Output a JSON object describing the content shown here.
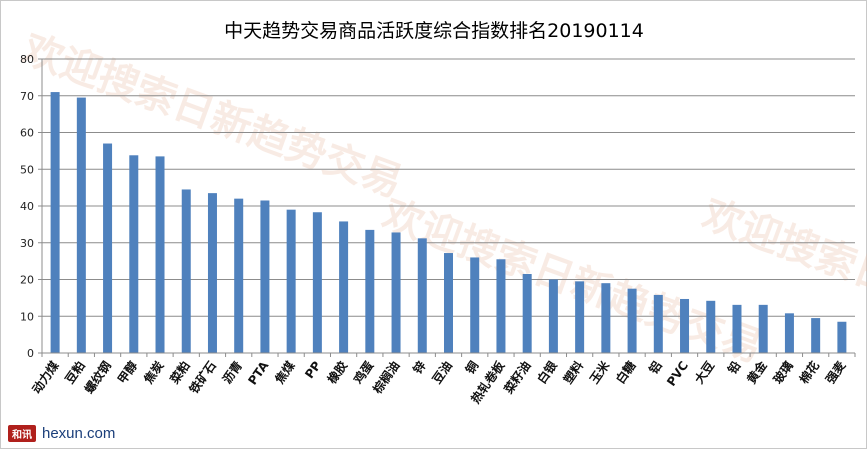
{
  "watermark": "欢迎搜索日新趋势交易",
  "brand": {
    "mark": "和讯",
    "site": "hexun.com"
  },
  "chart_data": {
    "type": "bar",
    "title": "中天趋势交易商品活跃度综合指数排名20190114",
    "categories": [
      "动力煤",
      "豆粕",
      "螺纹钢",
      "甲醇",
      "焦炭",
      "菜粕",
      "铁矿石",
      "沥青",
      "PTA",
      "焦煤",
      "PP",
      "橡胶",
      "鸡蛋",
      "棕榈油",
      "锌",
      "豆油",
      "铜",
      "热轧卷板",
      "菜籽油",
      "白银",
      "塑料",
      "玉米",
      "白糖",
      "铝",
      "PVC",
      "大豆",
      "铅",
      "黄金",
      "玻璃",
      "棉花",
      "强麦"
    ],
    "values": [
      71,
      69.5,
      57,
      53.8,
      53.5,
      44.5,
      43.5,
      42,
      41.5,
      39,
      38.3,
      35.8,
      33.5,
      32.8,
      31.2,
      27.2,
      26,
      25.5,
      21.5,
      20,
      19.5,
      19,
      17.5,
      15.8,
      14.7,
      14.2,
      13.1,
      13.1,
      10.8,
      9.5,
      8.5
    ],
    "ylim": [
      0,
      80
    ],
    "yticks": [
      0,
      10,
      20,
      30,
      40,
      50,
      60,
      70,
      80
    ],
    "grid": true,
    "legend": "none",
    "bar_color": "#4f81bd"
  }
}
